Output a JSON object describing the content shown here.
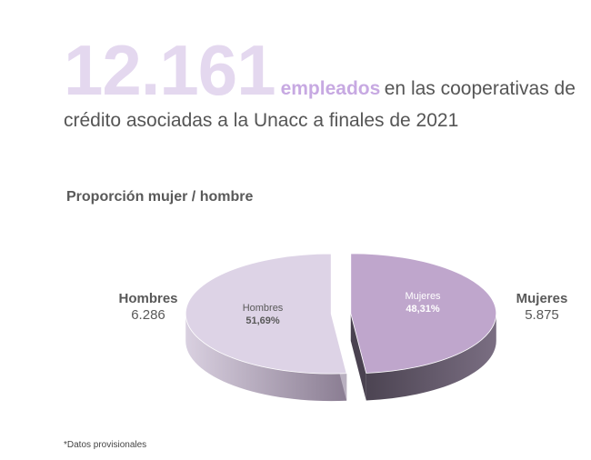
{
  "header": {
    "big_number": "12.161",
    "keyword": "empleados",
    "line1_rest": "en las cooperativas de",
    "line2": "crédito asociadas a la Unacc a finales de 2021"
  },
  "subtitle": "Proporción mujer / hombre",
  "footnote": "*Datos provisionales",
  "colors": {
    "big_number": "#e4d8ef",
    "keyword": "#c7a9e2",
    "hombres_top": "#ddd3e6",
    "mujeres_top": "#bfa6cc",
    "side_dark": "#5f5566"
  },
  "chart_data": {
    "type": "pie",
    "title": "Proporción mujer / hombre",
    "slices": [
      {
        "name": "Hombres",
        "count": "6.286",
        "percent_label": "51,69%",
        "value": 51.69
      },
      {
        "name": "Mujeres",
        "count": "5.875",
        "percent_label": "48,31%",
        "value": 48.31
      }
    ]
  }
}
